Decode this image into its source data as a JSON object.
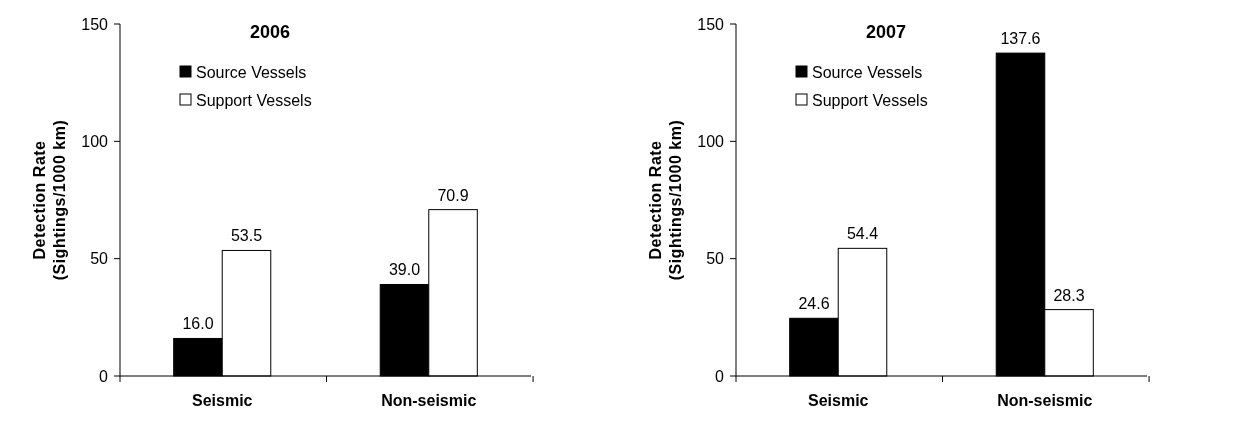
{
  "chart_data": [
    {
      "type": "bar",
      "title": "2006",
      "ylabel": "Detection Rate\n(Sightings/1000 km)",
      "categories": [
        "Seismic",
        "Non-seismic"
      ],
      "series": [
        {
          "name": "Source Vessels",
          "color": "#000000",
          "values": [
            16.0,
            39.0
          ],
          "value_labels": [
            "16.0",
            "39.0"
          ]
        },
        {
          "name": "Support Vessels",
          "color": "#ffffff",
          "values": [
            53.5,
            70.9
          ],
          "value_labels": [
            "53.5",
            "70.9"
          ]
        }
      ],
      "ylim": [
        0,
        150
      ],
      "yticks": [
        0,
        50,
        100,
        150
      ],
      "grid": false,
      "legend": "top left"
    },
    {
      "type": "bar",
      "title": "2007",
      "ylabel": "Detection Rate\n(Sightings/1000 km)",
      "categories": [
        "Seismic",
        "Non-seismic"
      ],
      "series": [
        {
          "name": "Source Vessels",
          "color": "#000000",
          "values": [
            24.6,
            137.6
          ],
          "value_labels": [
            "24.6",
            "137.6"
          ]
        },
        {
          "name": "Support Vessels",
          "color": "#ffffff",
          "values": [
            54.4,
            28.3
          ],
          "value_labels": [
            "54.4",
            "28.3"
          ]
        }
      ],
      "ylim": [
        0,
        150
      ],
      "yticks": [
        0,
        50,
        100,
        150
      ],
      "grid": false,
      "legend": "top left"
    }
  ]
}
